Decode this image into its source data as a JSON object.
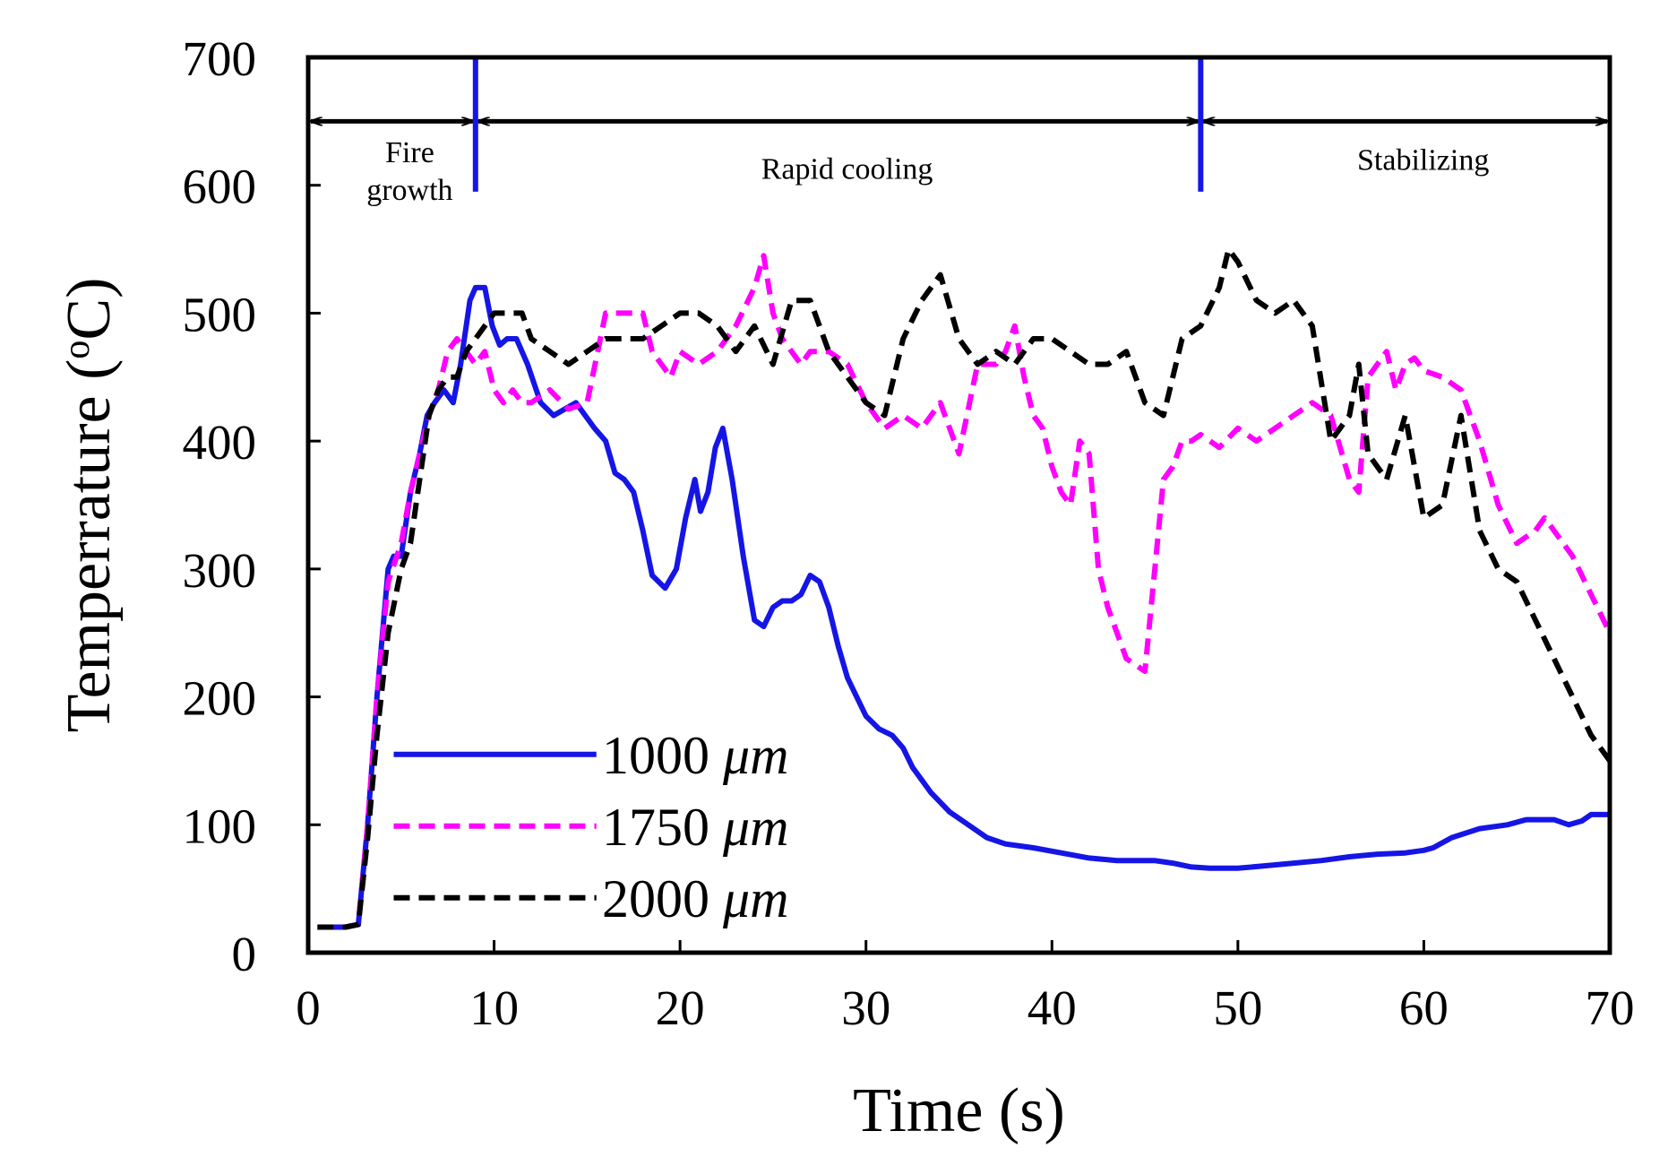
{
  "chart_data": {
    "type": "line",
    "title": "",
    "xlabel": "Time (s)",
    "ylabel": "Temperrature (°C)",
    "ylabel_text": "Temperrature (",
    "ylabel_degree": "o",
    "ylabel_unit": "C)",
    "xlim": [
      0,
      70
    ],
    "ylim": [
      0,
      700
    ],
    "xticks": [
      0,
      10,
      20,
      30,
      40,
      50,
      60,
      70
    ],
    "yticks": [
      0,
      100,
      200,
      300,
      400,
      500,
      600,
      700
    ],
    "grid": false,
    "legend_position": "bottom-left",
    "series": [
      {
        "name": "1000 μm",
        "name_num": "1000 ",
        "name_unit": "μm",
        "color": "#1515e6",
        "style": "solid",
        "x": [
          0.5,
          2,
          2.7,
          3.2,
          3.7,
          4.3,
          4.6,
          5,
          5.5,
          6,
          6.4,
          6.8,
          7.3,
          7.8,
          8.2,
          8.7,
          9,
          9.5,
          9.9,
          10.3,
          10.7,
          11.2,
          11.8,
          12.5,
          13.2,
          13.8,
          14.4,
          14.9,
          15.4,
          16,
          16.5,
          17,
          17.5,
          18,
          18.5,
          19.2,
          19.8,
          20.3,
          20.8,
          21.1,
          21.5,
          21.9,
          22.3,
          22.8,
          23.4,
          24,
          24.5,
          25,
          25.5,
          26,
          26.5,
          27,
          27.5,
          28,
          28.5,
          29,
          29.5,
          30,
          30.7,
          31.4,
          32,
          32.5,
          33.5,
          34.5,
          35.5,
          36.5,
          37.5,
          39,
          40.5,
          42,
          43.5,
          44.5,
          45.5,
          46.5,
          47.5,
          48.5,
          50,
          51.5,
          53,
          54.5,
          56,
          57.5,
          59,
          60,
          60.5,
          61.5,
          63,
          64.5,
          65.5,
          67,
          67.8,
          68.5,
          69,
          70
        ],
        "y": [
          20,
          20,
          22,
          100,
          200,
          300,
          310,
          310,
          360,
          390,
          420,
          430,
          440,
          430,
          460,
          510,
          520,
          520,
          490,
          475,
          480,
          480,
          460,
          430,
          420,
          425,
          430,
          420,
          410,
          400,
          375,
          370,
          360,
          330,
          295,
          285,
          300,
          340,
          370,
          345,
          360,
          395,
          410,
          370,
          310,
          260,
          255,
          270,
          275,
          275,
          280,
          295,
          290,
          270,
          240,
          215,
          200,
          185,
          175,
          170,
          160,
          145,
          125,
          110,
          100,
          90,
          85,
          82,
          78,
          74,
          72,
          72,
          72,
          70,
          67,
          66,
          66,
          68,
          70,
          72,
          75,
          77,
          78,
          80,
          82,
          90,
          97,
          100,
          104,
          104,
          100,
          103,
          108,
          108
        ]
      },
      {
        "name": "1750 μm",
        "name_num": "1750 ",
        "name_unit": "μm",
        "color": "#ff00ff",
        "style": "dashed",
        "x": [
          0.5,
          2,
          2.7,
          3.2,
          3.7,
          4.3,
          5,
          5.5,
          6,
          6.5,
          7,
          7.5,
          8,
          8.5,
          9,
          9.5,
          10,
          10.5,
          11,
          11.5,
          12,
          13,
          14,
          15,
          16,
          17,
          18,
          18.5,
          19,
          19.5,
          20,
          21,
          22,
          23,
          24,
          24.5,
          25,
          25.5,
          26,
          26.5,
          27,
          28,
          29,
          30,
          31,
          32,
          33,
          34,
          34.5,
          35,
          36,
          37,
          37.5,
          38,
          38.5,
          39,
          39.5,
          40,
          40.5,
          41,
          41.5,
          42,
          42.5,
          43,
          43.5,
          44,
          45,
          46,
          46.5,
          47,
          47.5,
          48,
          49,
          50,
          51,
          52,
          53,
          54,
          55,
          56,
          56.5,
          57,
          58,
          58.5,
          59,
          59.5,
          60,
          61,
          62,
          63,
          64,
          65,
          66,
          66.5,
          67,
          68,
          69,
          70
        ],
        "y": [
          20,
          20,
          22,
          100,
          200,
          290,
          320,
          360,
          390,
          420,
          440,
          470,
          480,
          470,
          460,
          470,
          440,
          430,
          440,
          430,
          430,
          440,
          425,
          430,
          500,
          500,
          500,
          470,
          460,
          450,
          470,
          460,
          470,
          490,
          520,
          545,
          500,
          480,
          470,
          460,
          470,
          470,
          460,
          430,
          410,
          420,
          410,
          430,
          410,
          390,
          460,
          460,
          470,
          490,
          450,
          420,
          410,
          380,
          360,
          350,
          400,
          390,
          300,
          270,
          250,
          230,
          220,
          370,
          380,
          400,
          400,
          405,
          395,
          410,
          400,
          410,
          420,
          430,
          420,
          370,
          360,
          450,
          470,
          440,
          460,
          465,
          455,
          450,
          440,
          400,
          350,
          320,
          330,
          340,
          330,
          310,
          280,
          250
        ]
      },
      {
        "name": "2000 μm",
        "name_num": "2000 ",
        "name_unit": "μm",
        "color": "#000000",
        "style": "dashed",
        "x": [
          0.5,
          2,
          2.7,
          3.2,
          3.7,
          4.3,
          5,
          5.5,
          6,
          6.5,
          7,
          7.5,
          8,
          8.5,
          9,
          9.5,
          10,
          10.5,
          11,
          11.5,
          12,
          13,
          14,
          15,
          16,
          17,
          18,
          19,
          20,
          21,
          22,
          23,
          24,
          25,
          26,
          27,
          28,
          29,
          30,
          31,
          32,
          33,
          34,
          35,
          36,
          37,
          38,
          39,
          40,
          41,
          42,
          43,
          44,
          45,
          46,
          47,
          48,
          49,
          49.5,
          50,
          51,
          52,
          53,
          54,
          55,
          56,
          56.5,
          57,
          58,
          59,
          60,
          61,
          62,
          63,
          64,
          65,
          66,
          67,
          68,
          69,
          70
        ],
        "y": [
          20,
          20,
          22,
          90,
          170,
          250,
          300,
          320,
          370,
          420,
          440,
          450,
          450,
          470,
          480,
          490,
          500,
          500,
          500,
          500,
          480,
          470,
          460,
          470,
          480,
          480,
          480,
          490,
          500,
          500,
          490,
          470,
          490,
          460,
          510,
          510,
          470,
          450,
          430,
          420,
          480,
          510,
          530,
          480,
          460,
          470,
          460,
          480,
          480,
          470,
          460,
          460,
          470,
          430,
          420,
          480,
          490,
          520,
          550,
          540,
          510,
          500,
          510,
          490,
          400,
          420,
          460,
          390,
          370,
          420,
          340,
          350,
          420,
          330,
          300,
          290,
          260,
          230,
          200,
          170,
          150
        ]
      }
    ],
    "phases": [
      {
        "label_lines": [
          "Fire",
          "growth"
        ],
        "start": 0,
        "end": 9
      },
      {
        "label_lines": [
          "Rapid cooling"
        ],
        "start": 9,
        "end": 48
      },
      {
        "label_lines": [
          "Stabilizing"
        ],
        "start": 48,
        "end": 70
      }
    ],
    "phase_boundaries": [
      9,
      48
    ],
    "phase_boundary_color": "#1515e6"
  }
}
